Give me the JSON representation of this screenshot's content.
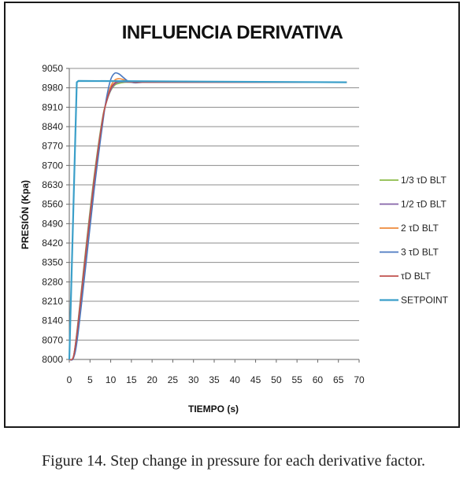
{
  "chart_data": {
    "type": "line",
    "title": "INFLUENCIA DERIVATIVA",
    "xlabel": "TIEMPO (s)",
    "ylabel": "PRESIÓN (Kpa)",
    "xlim": [
      0,
      70
    ],
    "ylim": [
      8000,
      9050
    ],
    "xticks": [
      "0",
      "5",
      "10",
      "15",
      "20",
      "25",
      "30",
      "35",
      "40",
      "45",
      "50",
      "55",
      "60",
      "65",
      "70"
    ],
    "yticks": [
      "9050",
      "8980",
      "8910",
      "8840",
      "8770",
      "8700",
      "8630",
      "8560",
      "8490",
      "8420",
      "8350",
      "8280",
      "8210",
      "8140",
      "8070",
      "8000"
    ],
    "grid": "horizontal",
    "legend_position": "right",
    "series": [
      {
        "name": "1/3 τD BLT",
        "color": "#8dbb4a",
        "x": [
          0,
          1,
          2,
          4,
          6,
          8,
          9,
          10,
          11,
          12,
          13,
          14,
          16,
          18,
          20,
          67
        ],
        "y": [
          8000,
          8010,
          8120,
          8400,
          8660,
          8870,
          8930,
          8970,
          8990,
          8996,
          8999,
          9000,
          9000,
          9000,
          9000,
          9000
        ]
      },
      {
        "name": "1/2 τD BLT",
        "color": "#8563a8",
        "x": [
          0,
          1,
          2,
          4,
          6,
          8,
          9,
          10,
          11,
          12,
          13,
          14,
          16,
          18,
          20,
          67
        ],
        "y": [
          8000,
          8010,
          8115,
          8390,
          8650,
          8865,
          8930,
          8972,
          8994,
          9001,
          9002,
          9001,
          9000,
          9000,
          9000,
          9000
        ]
      },
      {
        "name": "2 τD BLT",
        "color": "#ee8a3c",
        "x": [
          0,
          1,
          2,
          4,
          6,
          8,
          9,
          10,
          11,
          12,
          13,
          14,
          16,
          18,
          20,
          67
        ],
        "y": [
          8000,
          8010,
          8105,
          8375,
          8640,
          8860,
          8935,
          8985,
          9008,
          9013,
          9010,
          9005,
          9001,
          9000,
          9000,
          9000
        ]
      },
      {
        "name": "3 τD BLT",
        "color": "#4a78c0",
        "x": [
          0,
          1,
          2,
          4,
          6,
          8,
          9,
          10,
          11,
          12,
          13,
          14,
          15,
          16,
          18,
          20,
          67
        ],
        "y": [
          8000,
          8005,
          8080,
          8340,
          8610,
          8845,
          8945,
          9010,
          9033,
          9030,
          9018,
          9006,
          9000,
          8998,
          9000,
          9000,
          9000
        ]
      },
      {
        "name": "τD BLT",
        "color": "#c0504d",
        "x": [
          0,
          1,
          2,
          4,
          6,
          8,
          9,
          10,
          11,
          12,
          13,
          14,
          16,
          18,
          20,
          67
        ],
        "y": [
          8000,
          8010,
          8110,
          8385,
          8645,
          8862,
          8932,
          8978,
          8998,
          9004,
          9004,
          9002,
          9000,
          9000,
          9000,
          9000
        ]
      },
      {
        "name": "SETPOINT",
        "color": "#3b9fc9",
        "x": [
          0,
          1.8,
          2.2,
          67
        ],
        "y": [
          8000,
          9000,
          9005,
          9000
        ]
      }
    ]
  },
  "caption": "Figure 14. Step change in pressure for each derivative factor."
}
